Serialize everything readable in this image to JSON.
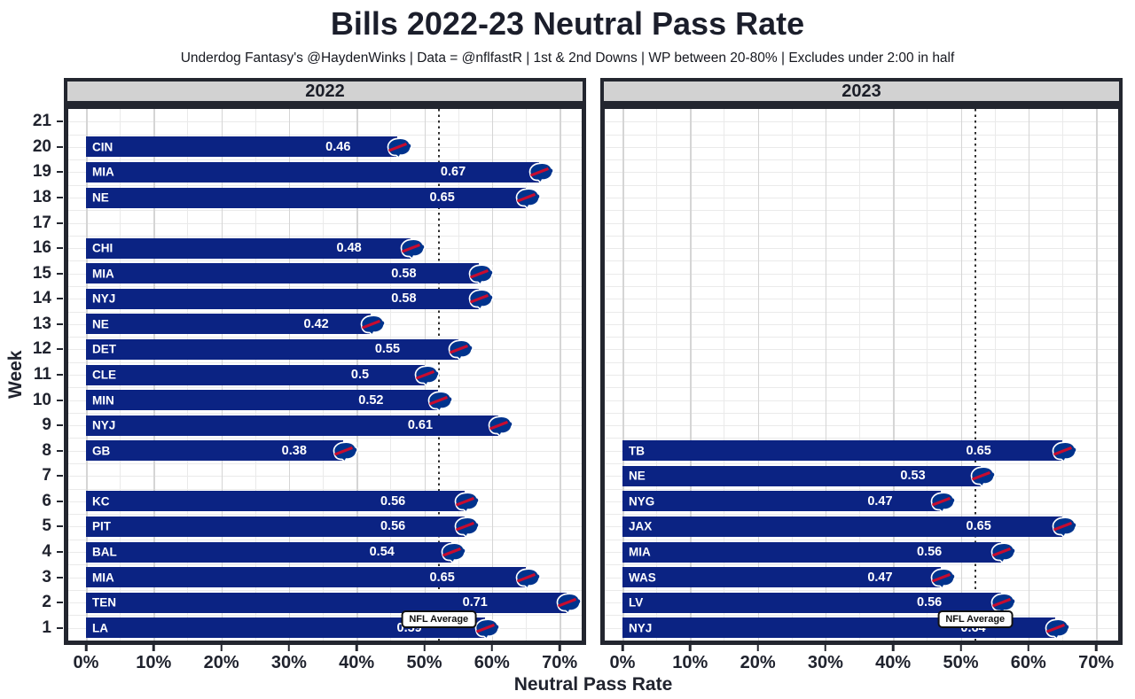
{
  "chart_data": {
    "type": "bar",
    "orientation": "horizontal",
    "title": "Bills 2022-23 Neutral Pass Rate",
    "subtitle": "Underdog Fantasy's @HaydenWinks | Data = @nflfastR | 1st & 2nd Downs | WP between 20-80% | Excludes under 2:00 in half",
    "xlabel": "Neutral Pass Rate",
    "ylabel": "Week",
    "xlim": [
      0,
      0.73
    ],
    "grid": true,
    "x_ticks": [
      {
        "value": 0.0,
        "label": "0%"
      },
      {
        "value": 0.1,
        "label": "10%"
      },
      {
        "value": 0.2,
        "label": "20%"
      },
      {
        "value": 0.3,
        "label": "30%"
      },
      {
        "value": 0.4,
        "label": "40%"
      },
      {
        "value": 0.5,
        "label": "50%"
      },
      {
        "value": 0.6,
        "label": "60%"
      },
      {
        "value": 0.7,
        "label": "70%"
      }
    ],
    "week_min": 1,
    "week_max": 21,
    "week_labels": [
      "21",
      "20",
      "19",
      "18",
      "17",
      "16",
      "15",
      "14",
      "13",
      "12",
      "11",
      "10",
      "9",
      "8",
      "7",
      "6",
      "5",
      "4",
      "3",
      "2",
      "1"
    ],
    "reference_line": {
      "value": 0.52,
      "label": "NFL Average",
      "style": "dotted"
    },
    "panels": [
      {
        "label": "2022",
        "games": [
          {
            "week": 20,
            "opponent": "CIN",
            "value": 0.46,
            "value_label": "0.46"
          },
          {
            "week": 19,
            "opponent": "MIA",
            "value": 0.67,
            "value_label": "0.67"
          },
          {
            "week": 18,
            "opponent": "NE",
            "value": 0.65,
            "value_label": "0.65"
          },
          {
            "week": 16,
            "opponent": "CHI",
            "value": 0.48,
            "value_label": "0.48"
          },
          {
            "week": 15,
            "opponent": "MIA",
            "value": 0.58,
            "value_label": "0.58"
          },
          {
            "week": 14,
            "opponent": "NYJ",
            "value": 0.58,
            "value_label": "0.58"
          },
          {
            "week": 13,
            "opponent": "NE",
            "value": 0.42,
            "value_label": "0.42"
          },
          {
            "week": 12,
            "opponent": "DET",
            "value": 0.55,
            "value_label": "0.55"
          },
          {
            "week": 11,
            "opponent": "CLE",
            "value": 0.5,
            "value_label": "0.5"
          },
          {
            "week": 10,
            "opponent": "MIN",
            "value": 0.52,
            "value_label": "0.52"
          },
          {
            "week": 9,
            "opponent": "NYJ",
            "value": 0.61,
            "value_label": "0.61"
          },
          {
            "week": 8,
            "opponent": "GB",
            "value": 0.38,
            "value_label": "0.38"
          },
          {
            "week": 6,
            "opponent": "KC",
            "value": 0.56,
            "value_label": "0.56"
          },
          {
            "week": 5,
            "opponent": "PIT",
            "value": 0.56,
            "value_label": "0.56"
          },
          {
            "week": 4,
            "opponent": "BAL",
            "value": 0.54,
            "value_label": "0.54"
          },
          {
            "week": 3,
            "opponent": "MIA",
            "value": 0.65,
            "value_label": "0.65"
          },
          {
            "week": 2,
            "opponent": "TEN",
            "value": 0.71,
            "value_label": "0.71"
          },
          {
            "week": 1,
            "opponent": "LA",
            "value": 0.59,
            "value_label": "0.59"
          }
        ]
      },
      {
        "label": "2023",
        "games": [
          {
            "week": 8,
            "opponent": "TB",
            "value": 0.65,
            "value_label": "0.65"
          },
          {
            "week": 7,
            "opponent": "NE",
            "value": 0.53,
            "value_label": "0.53"
          },
          {
            "week": 6,
            "opponent": "NYG",
            "value": 0.47,
            "value_label": "0.47"
          },
          {
            "week": 5,
            "opponent": "JAX",
            "value": 0.65,
            "value_label": "0.65"
          },
          {
            "week": 4,
            "opponent": "MIA",
            "value": 0.56,
            "value_label": "0.56"
          },
          {
            "week": 3,
            "opponent": "WAS",
            "value": 0.47,
            "value_label": "0.47"
          },
          {
            "week": 2,
            "opponent": "LV",
            "value": 0.56,
            "value_label": "0.56"
          },
          {
            "week": 1,
            "opponent": "NYJ",
            "value": 0.64,
            "value_label": "0.64"
          }
        ]
      }
    ]
  },
  "colors": {
    "bar": "#0b2383",
    "bar_text": "#ffffff",
    "panel_strip_bg": "#d2d2d2",
    "border": "#23262f",
    "grid_major": "#d5d5d5",
    "grid_minor": "#eaeaea",
    "text": "#20232e",
    "logo_blue": "#00338d",
    "logo_red": "#c60c30",
    "reference_line": "#2e2e2e"
  },
  "icons": {
    "bar_end": "bills-logo-icon"
  }
}
